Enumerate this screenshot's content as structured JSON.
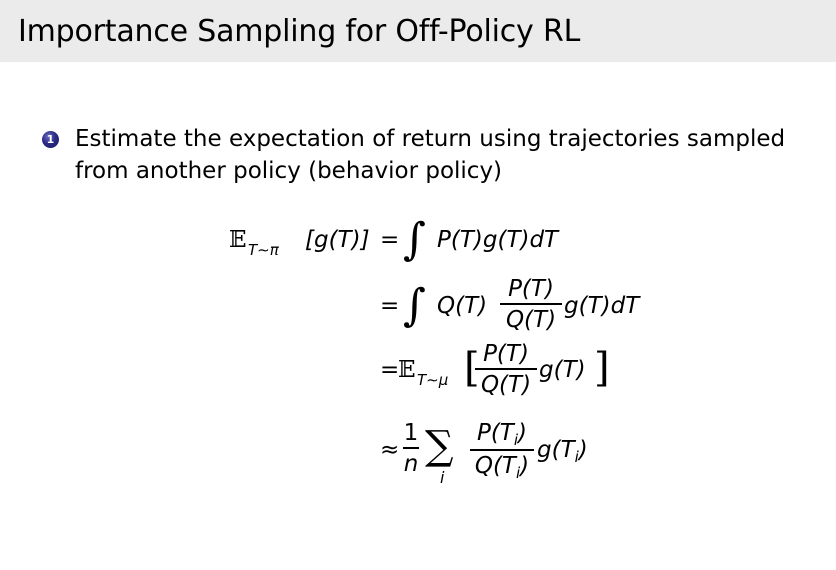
{
  "slide": {
    "title": "Importance Sampling for Off-Policy RL"
  },
  "bullets": [
    {
      "number": "1",
      "text": "Estimate the expectation of return using trajectories sampled from another policy (behavior policy)"
    }
  ],
  "equation": {
    "line1_lhs_E": "𝔼",
    "line1_lhs_sub": "T∼π",
    "line1_lhs_arg": "[g(T)]",
    "line1_eq": "=",
    "integral": "∫",
    "line1_rhs": "P(T)g(T)dT",
    "line2_eq": "=",
    "line2_pre": "Q(T)",
    "line2_num": "P(T)",
    "line2_den": "Q(T)",
    "line2_post": "g(T)dT",
    "line3_eq": "=",
    "line3_E": "𝔼",
    "line3_sub": "T∼μ",
    "line3_open": "[",
    "line3_num": "P(T)",
    "line3_den": "Q(T)",
    "line3_post": "g(T)",
    "line3_close": "]",
    "line4_approx": "≈",
    "line4_one": "1",
    "line4_n": "n",
    "line4_sum": "∑",
    "line4_sum_index": "i",
    "line4_num": "P(T",
    "line4_num_sub": "i",
    "line4_num_close": ")",
    "line4_den": "Q(T",
    "line4_den_sub": "i",
    "line4_den_close": ")",
    "line4_post": "g(T",
    "line4_post_sub": "i",
    "line4_post_close": ")"
  }
}
